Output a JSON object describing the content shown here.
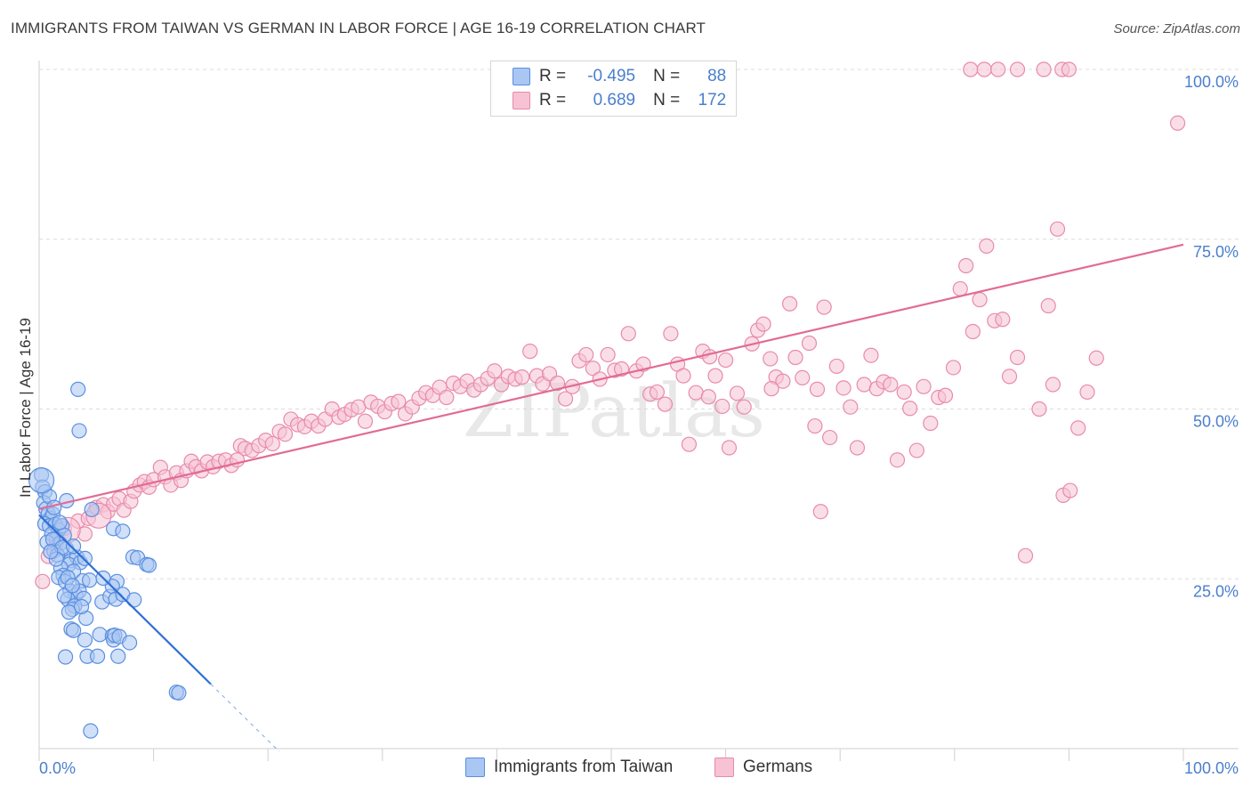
{
  "title": "IMMIGRANTS FROM TAIWAN VS GERMAN IN LABOR FORCE | AGE 16-19 CORRELATION CHART",
  "source": "Source: ZipAtlas.com",
  "watermark": "ZIPatlas",
  "colors": {
    "blue": "#5b8fe0",
    "blue_fill": "#aac6f3",
    "blue_line": "#2f6fd6",
    "pink": "#e98aac",
    "pink_fill": "#f6c2d4",
    "pink_line": "#e26b96",
    "tick_text": "#4a7fcc"
  },
  "legend": {
    "rows": [
      {
        "r_label": "R =",
        "r_value": "-0.495",
        "n_label": "N =",
        "n_value": "88"
      },
      {
        "r_label": "R =",
        "r_value": "0.689",
        "n_label": "N =",
        "n_value": "172"
      }
    ]
  },
  "bottom_legend": {
    "series1": "Immigrants from Taiwan",
    "series2": "Germans"
  },
  "chart_data": {
    "type": "scatter",
    "xlabel": "",
    "ylabel": "In Labor Force | Age 16-19",
    "xlim": [
      0,
      100
    ],
    "ylim": [
      0,
      100
    ],
    "x_tick_labels": [
      "0.0%",
      "100.0%"
    ],
    "y_tick_labels": [
      "25.0%",
      "50.0%",
      "75.0%",
      "100.0%"
    ],
    "y_ticks": [
      25,
      50,
      75,
      100
    ],
    "grid": true,
    "series": [
      {
        "name": "Immigrants from Taiwan",
        "color": "blue",
        "R": -0.495,
        "N": 88,
        "trend": {
          "x0": 0,
          "y0": 34.4,
          "x1": 15,
          "y1": 9.5,
          "dash_to_x": 21
        },
        "points": [
          [
            0.2,
            40.3
          ],
          [
            0.3,
            38.5
          ],
          [
            0.5,
            37.8
          ],
          [
            0.4,
            36.2
          ],
          [
            0.6,
            35.3
          ],
          [
            0.8,
            34.6
          ],
          [
            1.0,
            33.9
          ],
          [
            1.2,
            34.5
          ],
          [
            0.5,
            33.1
          ],
          [
            0.9,
            32.8
          ],
          [
            1.4,
            33.0
          ],
          [
            1.7,
            32.2
          ],
          [
            2.0,
            32.8
          ],
          [
            1.1,
            31.6
          ],
          [
            1.5,
            30.9
          ],
          [
            2.2,
            31.4
          ],
          [
            1.8,
            30.2
          ],
          [
            0.7,
            30.4
          ],
          [
            1.3,
            29.1
          ],
          [
            2.4,
            29.4
          ],
          [
            1.6,
            28.5
          ],
          [
            2.8,
            27.7
          ],
          [
            3.3,
            28.2
          ],
          [
            2.6,
            27.1
          ],
          [
            3.6,
            27.4
          ],
          [
            4.0,
            28.0
          ],
          [
            1.9,
            26.6
          ],
          [
            3.0,
            26.1
          ],
          [
            2.1,
            25.5
          ],
          [
            1.7,
            25.2
          ],
          [
            2.3,
            24.6
          ],
          [
            3.8,
            24.7
          ],
          [
            2.7,
            23.2
          ],
          [
            3.2,
            22.6
          ],
          [
            3.5,
            23.2
          ],
          [
            2.5,
            22.0
          ],
          [
            3.9,
            22.1
          ],
          [
            3.1,
            21.0
          ],
          [
            2.9,
            20.5
          ],
          [
            2.6,
            20.1
          ],
          [
            4.1,
            19.2
          ],
          [
            2.8,
            17.6
          ],
          [
            3.0,
            17.4
          ],
          [
            4.0,
            16.0
          ],
          [
            4.2,
            13.6
          ],
          [
            2.3,
            13.5
          ],
          [
            5.1,
            13.6
          ],
          [
            5.3,
            16.8
          ],
          [
            6.4,
            16.6
          ],
          [
            6.5,
            16.0
          ],
          [
            6.6,
            16.7
          ],
          [
            7.0,
            16.5
          ],
          [
            7.9,
            15.6
          ],
          [
            6.9,
            13.6
          ],
          [
            5.5,
            21.6
          ],
          [
            6.2,
            22.4
          ],
          [
            6.8,
            24.6
          ],
          [
            6.4,
            23.9
          ],
          [
            6.7,
            22.0
          ],
          [
            7.3,
            22.7
          ],
          [
            8.3,
            21.9
          ],
          [
            8.2,
            28.2
          ],
          [
            8.6,
            28.1
          ],
          [
            9.4,
            27.1
          ],
          [
            9.6,
            27.0
          ],
          [
            6.5,
            32.4
          ],
          [
            7.3,
            32.0
          ],
          [
            4.6,
            35.2
          ],
          [
            0.9,
            37.1
          ],
          [
            1.3,
            35.5
          ],
          [
            2.4,
            36.5
          ],
          [
            3.4,
            52.9
          ],
          [
            3.5,
            46.8
          ],
          [
            12.0,
            8.3
          ],
          [
            12.2,
            8.2
          ],
          [
            4.5,
            2.6
          ],
          [
            1.2,
            30.8
          ],
          [
            2.0,
            29.6
          ],
          [
            3.0,
            29.8
          ],
          [
            1.5,
            27.9
          ],
          [
            2.5,
            25.2
          ],
          [
            4.4,
            24.8
          ],
          [
            3.7,
            20.9
          ],
          [
            2.2,
            22.5
          ],
          [
            5.6,
            25.1
          ],
          [
            1.0,
            29.0
          ],
          [
            1.8,
            33.3
          ],
          [
            2.9,
            24.0
          ]
        ],
        "big_points": [
          [
            0.2,
            39.5
          ]
        ]
      },
      {
        "name": "Germans",
        "color": "pink",
        "R": 0.689,
        "N": 172,
        "trend": {
          "x0": 0,
          "y0": 35.3,
          "x1": 100,
          "y1": 74.2
        },
        "points": [
          [
            0.3,
            24.6
          ],
          [
            0.8,
            28.3
          ],
          [
            1.5,
            30.2
          ],
          [
            2.2,
            32.4
          ],
          [
            3.4,
            33.5
          ],
          [
            4.0,
            31.6
          ],
          [
            4.3,
            33.9
          ],
          [
            5.0,
            35.5
          ],
          [
            5.6,
            35.9
          ],
          [
            6.0,
            34.9
          ],
          [
            6.5,
            36.0
          ],
          [
            7.0,
            36.8
          ],
          [
            7.4,
            35.1
          ],
          [
            8.0,
            36.4
          ],
          [
            8.3,
            37.9
          ],
          [
            8.8,
            38.8
          ],
          [
            9.2,
            39.3
          ],
          [
            9.6,
            38.5
          ],
          [
            10.0,
            39.6
          ],
          [
            10.6,
            41.4
          ],
          [
            11.0,
            40.0
          ],
          [
            11.5,
            38.8
          ],
          [
            12.0,
            40.6
          ],
          [
            12.4,
            39.5
          ],
          [
            12.9,
            40.9
          ],
          [
            13.3,
            42.3
          ],
          [
            13.7,
            41.5
          ],
          [
            14.2,
            40.9
          ],
          [
            14.7,
            42.2
          ],
          [
            15.2,
            41.5
          ],
          [
            15.7,
            42.3
          ],
          [
            16.3,
            42.5
          ],
          [
            16.8,
            41.7
          ],
          [
            17.3,
            42.5
          ],
          [
            17.6,
            44.6
          ],
          [
            18.0,
            44.2
          ],
          [
            18.6,
            43.9
          ],
          [
            19.2,
            44.6
          ],
          [
            19.8,
            45.4
          ],
          [
            20.4,
            44.9
          ],
          [
            21.0,
            46.7
          ],
          [
            21.5,
            46.3
          ],
          [
            22.0,
            48.5
          ],
          [
            22.6,
            47.7
          ],
          [
            23.2,
            47.4
          ],
          [
            23.8,
            48.2
          ],
          [
            24.4,
            47.5
          ],
          [
            25.0,
            48.5
          ],
          [
            25.6,
            50.0
          ],
          [
            26.2,
            48.8
          ],
          [
            26.7,
            49.2
          ],
          [
            27.3,
            49.9
          ],
          [
            27.9,
            50.3
          ],
          [
            28.5,
            48.2
          ],
          [
            29.0,
            51.0
          ],
          [
            29.6,
            50.4
          ],
          [
            30.2,
            49.6
          ],
          [
            30.8,
            50.8
          ],
          [
            31.4,
            51.1
          ],
          [
            32.0,
            49.3
          ],
          [
            32.6,
            50.3
          ],
          [
            33.2,
            51.6
          ],
          [
            33.8,
            52.4
          ],
          [
            34.4,
            52.0
          ],
          [
            35.0,
            53.2
          ],
          [
            35.6,
            51.7
          ],
          [
            36.2,
            53.8
          ],
          [
            36.8,
            53.3
          ],
          [
            37.4,
            54.1
          ],
          [
            38.0,
            52.8
          ],
          [
            38.6,
            53.6
          ],
          [
            39.2,
            54.5
          ],
          [
            39.8,
            55.6
          ],
          [
            40.4,
            53.6
          ],
          [
            41.0,
            54.8
          ],
          [
            41.6,
            54.4
          ],
          [
            42.2,
            54.7
          ],
          [
            42.9,
            58.5
          ],
          [
            43.5,
            54.9
          ],
          [
            44.0,
            53.7
          ],
          [
            44.6,
            55.2
          ],
          [
            45.3,
            53.8
          ],
          [
            46.0,
            51.5
          ],
          [
            46.6,
            53.3
          ],
          [
            47.2,
            57.1
          ],
          [
            47.8,
            58.0
          ],
          [
            48.4,
            56.0
          ],
          [
            49.0,
            54.4
          ],
          [
            49.7,
            58.0
          ],
          [
            50.3,
            55.7
          ],
          [
            50.9,
            55.9
          ],
          [
            51.5,
            61.1
          ],
          [
            52.2,
            55.6
          ],
          [
            52.8,
            56.6
          ],
          [
            53.4,
            52.2
          ],
          [
            54.0,
            52.5
          ],
          [
            54.7,
            50.7
          ],
          [
            55.2,
            61.1
          ],
          [
            55.8,
            56.6
          ],
          [
            56.3,
            54.9
          ],
          [
            56.8,
            44.8
          ],
          [
            57.4,
            52.4
          ],
          [
            58.0,
            58.5
          ],
          [
            58.6,
            57.7
          ],
          [
            59.1,
            54.9
          ],
          [
            59.7,
            50.4
          ],
          [
            60.3,
            44.3
          ],
          [
            61.0,
            52.3
          ],
          [
            61.6,
            50.3
          ],
          [
            62.3,
            59.6
          ],
          [
            62.8,
            61.6
          ],
          [
            63.3,
            62.5
          ],
          [
            63.9,
            57.4
          ],
          [
            64.4,
            54.7
          ],
          [
            65.0,
            54.1
          ],
          [
            65.6,
            65.5
          ],
          [
            66.1,
            57.6
          ],
          [
            66.7,
            54.6
          ],
          [
            67.3,
            59.7
          ],
          [
            67.8,
            47.5
          ],
          [
            68.3,
            34.9
          ],
          [
            68.6,
            65.0
          ],
          [
            69.1,
            45.8
          ],
          [
            69.7,
            56.3
          ],
          [
            70.3,
            53.1
          ],
          [
            70.9,
            50.3
          ],
          [
            71.5,
            44.3
          ],
          [
            72.1,
            53.6
          ],
          [
            72.7,
            57.9
          ],
          [
            73.2,
            53.0
          ],
          [
            73.8,
            54.0
          ],
          [
            74.4,
            53.6
          ],
          [
            75.0,
            42.5
          ],
          [
            75.6,
            52.5
          ],
          [
            76.1,
            50.1
          ],
          [
            76.7,
            43.9
          ],
          [
            77.3,
            53.3
          ],
          [
            77.9,
            47.9
          ],
          [
            78.6,
            51.7
          ],
          [
            79.2,
            52.0
          ],
          [
            79.9,
            56.1
          ],
          [
            80.5,
            67.7
          ],
          [
            81.0,
            71.1
          ],
          [
            81.6,
            61.4
          ],
          [
            82.2,
            66.1
          ],
          [
            82.8,
            74.0
          ],
          [
            83.5,
            63.0
          ],
          [
            84.2,
            63.2
          ],
          [
            84.8,
            54.8
          ],
          [
            85.5,
            57.6
          ],
          [
            86.2,
            28.4
          ],
          [
            87.4,
            50.0
          ],
          [
            88.2,
            65.2
          ],
          [
            88.6,
            53.6
          ],
          [
            89.0,
            76.5
          ],
          [
            89.5,
            37.3
          ],
          [
            90.1,
            38.0
          ],
          [
            90.8,
            47.2
          ],
          [
            91.6,
            52.5
          ],
          [
            92.4,
            57.5
          ],
          [
            81.4,
            100
          ],
          [
            82.6,
            100
          ],
          [
            83.8,
            100
          ],
          [
            85.5,
            100
          ],
          [
            87.8,
            100
          ],
          [
            89.4,
            100
          ],
          [
            90.0,
            100
          ],
          [
            99.5,
            92.1
          ],
          [
            68.0,
            52.9
          ],
          [
            64.0,
            53.0
          ],
          [
            60.0,
            57.2
          ],
          [
            58.5,
            51.8
          ]
        ],
        "big_points": [
          [
            2.5,
            32.2
          ],
          [
            5.2,
            34.3
          ]
        ]
      }
    ]
  }
}
